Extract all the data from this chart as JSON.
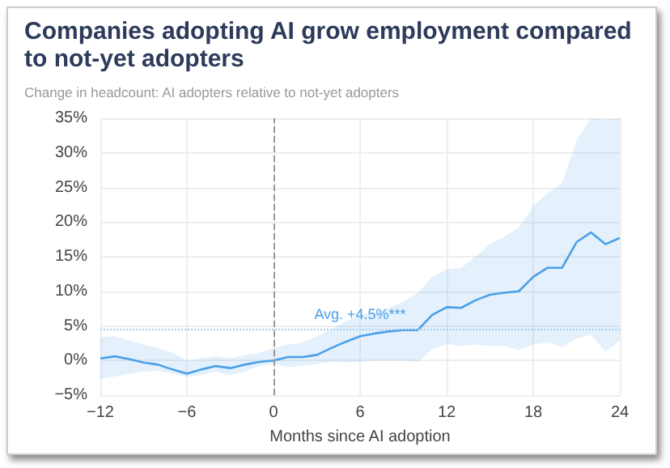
{
  "chart_data": {
    "type": "line",
    "title": "Companies adopting AI grow employment compared to not-yet adopters",
    "subtitle": "Change in headcount: AI adopters relative to not-yet adopters",
    "xlabel": "Months since AI adoption",
    "x": [
      -12,
      -11,
      -10,
      -9,
      -8,
      -7,
      -6,
      -5,
      -4,
      -3,
      -2,
      -1,
      0,
      1,
      2,
      3,
      4,
      5,
      6,
      7,
      8,
      9,
      10,
      11,
      12,
      13,
      14,
      15,
      16,
      17,
      18,
      19,
      20,
      21,
      22,
      23,
      24
    ],
    "series": [
      {
        "color": "#4a9fe8",
        "values": [
          0.3,
          0.6,
          0.2,
          -0.3,
          -0.6,
          -1.3,
          -1.9,
          -1.3,
          -0.8,
          -1.1,
          -0.6,
          -0.2,
          0,
          0.5,
          0.5,
          0.8,
          1.8,
          2.7,
          3.5,
          3.9,
          4.2,
          4.4,
          4.4,
          6.6,
          7.7,
          7.6,
          8.7,
          9.5,
          9.8,
          10,
          12.1,
          13.4,
          13.4,
          17.1,
          18.5,
          16.8,
          17.7
        ],
        "lower": [
          -2.6,
          -2.3,
          -1.9,
          -1.6,
          -1.5,
          -1.9,
          -2.4,
          -2.1,
          -1.6,
          -2.1,
          -1.6,
          -0.8,
          -0.5,
          -1.0,
          -0.8,
          -0.5,
          -0.2,
          -0.3,
          -0.2,
          0,
          0,
          0,
          -0.2,
          1.6,
          2.4,
          2.1,
          2.3,
          2.1,
          2.1,
          1.5,
          2.3,
          2.6,
          1.9,
          3.2,
          3.7,
          1.3,
          2.9
        ],
        "upper": [
          3.4,
          3.5,
          2.9,
          2.3,
          1.8,
          1.1,
          0,
          0.3,
          0.6,
          0.3,
          0.8,
          1.1,
          1.8,
          2.3,
          2.6,
          3.5,
          4.5,
          5.6,
          6.6,
          6.9,
          7.6,
          8.5,
          9.8,
          12.1,
          13.2,
          13.4,
          15,
          16.8,
          17.9,
          19.2,
          22.3,
          24.2,
          25.6,
          31.8,
          35,
          34.8,
          35
        ]
      }
    ],
    "xlim": [
      -12,
      24
    ],
    "xticks": [
      {
        "value": -12,
        "label": "−12"
      },
      {
        "value": -6,
        "label": "−6"
      },
      0,
      6,
      12,
      18,
      24
    ],
    "ylim": [
      -5,
      35
    ],
    "yticks": [
      {
        "value": -5,
        "label": "−5%"
      },
      {
        "value": 0,
        "label": "0%"
      },
      {
        "value": 5,
        "label": "5%"
      },
      {
        "value": 10,
        "label": "10%"
      },
      {
        "value": 15,
        "label": "15%"
      },
      {
        "value": 20,
        "label": "20%"
      },
      {
        "value": 25,
        "label": "25%"
      },
      {
        "value": 30,
        "label": "30%"
      },
      {
        "value": 35,
        "label": "35%"
      }
    ],
    "ref_lines": [
      {
        "axis": "x",
        "value": 0,
        "line_style": "dashed",
        "color": "#999999"
      },
      {
        "axis": "y",
        "value": 4.5,
        "label": "Avg. +4.5%***",
        "line_style": "dotted",
        "color": "#a8cdf0"
      }
    ],
    "grid": true,
    "marker": "none",
    "line_style": "solid"
  }
}
